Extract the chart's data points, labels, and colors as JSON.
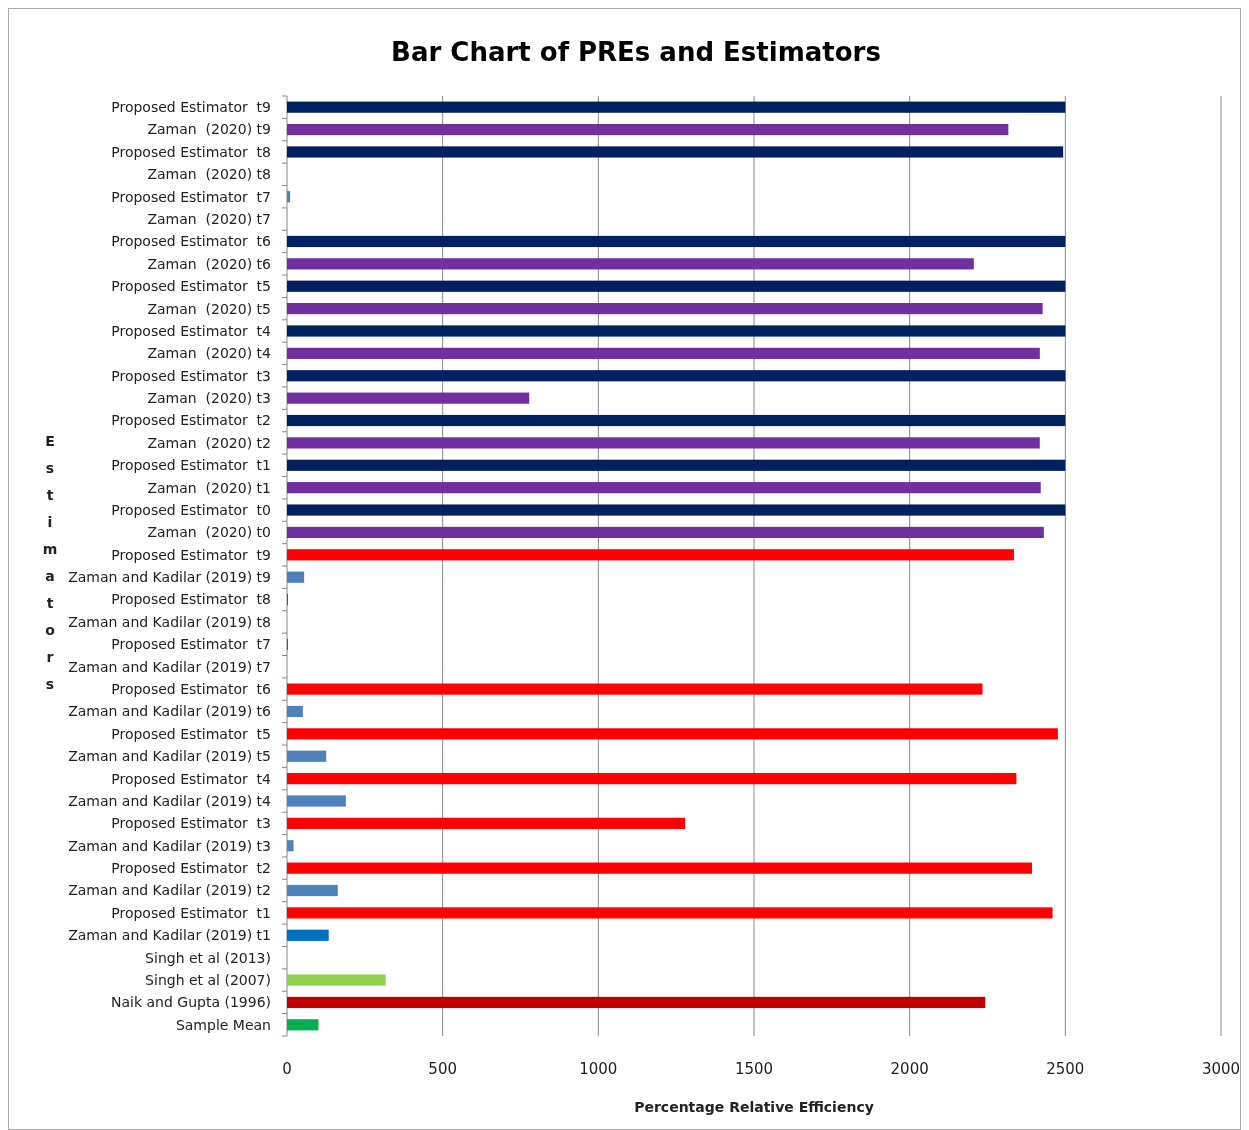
{
  "chart_data": {
    "type": "bar",
    "orientation": "horizontal",
    "title": "Bar Chart of PREs and Estimators",
    "xlabel": "Percentage Relative Efficiency",
    "ylabel": "Estimators",
    "categories": [
      "Proposed Estimator  t9",
      "Zaman  (2020) t9",
      "Proposed Estimator  t8",
      "Zaman  (2020) t8",
      "Proposed Estimator  t7",
      "Zaman  (2020) t7",
      "Proposed Estimator  t6",
      "Zaman  (2020) t6",
      "Proposed Estimator  t5",
      "Zaman  (2020) t5",
      "Proposed Estimator  t4",
      "Zaman  (2020) t4",
      "Proposed Estimator  t3",
      "Zaman  (2020) t3",
      "Proposed Estimator  t2",
      "Zaman  (2020) t2",
      "Proposed Estimator  t1",
      "Zaman  (2020) t1",
      "Proposed Estimator  t0",
      "Zaman  (2020) t0",
      "Proposed Estimator  t9",
      "Zaman and Kadilar (2019) t9",
      "Proposed Estimator  t8",
      "Zaman and Kadilar (2019) t8",
      "Proposed Estimator  t7",
      "Zaman and Kadilar (2019) t7",
      "Proposed Estimator  t6",
      "Zaman and Kadilar (2019) t6",
      "Proposed Estimator  t5",
      "Zaman and Kadilar (2019) t5",
      "Proposed Estimator  t4",
      "Zaman and Kadilar (2019) t4",
      "Proposed Estimator  t3",
      "Zaman and Kadilar (2019) t3",
      "Proposed Estimator  t2",
      "Zaman and Kadilar (2019) t2",
      "Proposed Estimator  t1",
      "Zaman and Kadilar (2019) t1",
      "Singh et al (2013)",
      "Singh et al (2007)",
      "Naik and Gupta (1996)",
      "Sample Mean"
    ],
    "values": [
      2500,
      2317,
      2493,
      0,
      10,
      0,
      2500,
      2206,
      2500,
      2427,
      2500,
      2418,
      2500,
      778,
      2500,
      2418,
      2500,
      2421,
      2500,
      2431,
      2335,
      55,
      3,
      0,
      3,
      0,
      2234,
      51,
      2476,
      126,
      2343,
      189,
      1279,
      21,
      2393,
      163,
      2459,
      134,
      0,
      317,
      2243,
      101
    ],
    "colors": [
      "#002060",
      "#7030a0",
      "#002060",
      "#7030a0",
      "#4f81bd",
      "#7030a0",
      "#002060",
      "#7030a0",
      "#002060",
      "#7030a0",
      "#002060",
      "#7030a0",
      "#002060",
      "#7030a0",
      "#002060",
      "#7030a0",
      "#002060",
      "#7030a0",
      "#002060",
      "#7030a0",
      "#ff0000",
      "#4f81bd",
      "#ff0000",
      "#4f81bd",
      "#ff0000",
      "#4f81bd",
      "#ff0000",
      "#4f81bd",
      "#ff0000",
      "#4f81bd",
      "#ff0000",
      "#4f81bd",
      "#ff0000",
      "#4f81bd",
      "#ff0000",
      "#4f81bd",
      "#ff0000",
      "#0070c0",
      "#4f81bd",
      "#92d050",
      "#c00000",
      "#00b050"
    ],
    "xlim": [
      0,
      3000
    ],
    "xticks": [
      0,
      500,
      1000,
      1500,
      2000,
      2500,
      3000
    ],
    "grid": "x"
  }
}
